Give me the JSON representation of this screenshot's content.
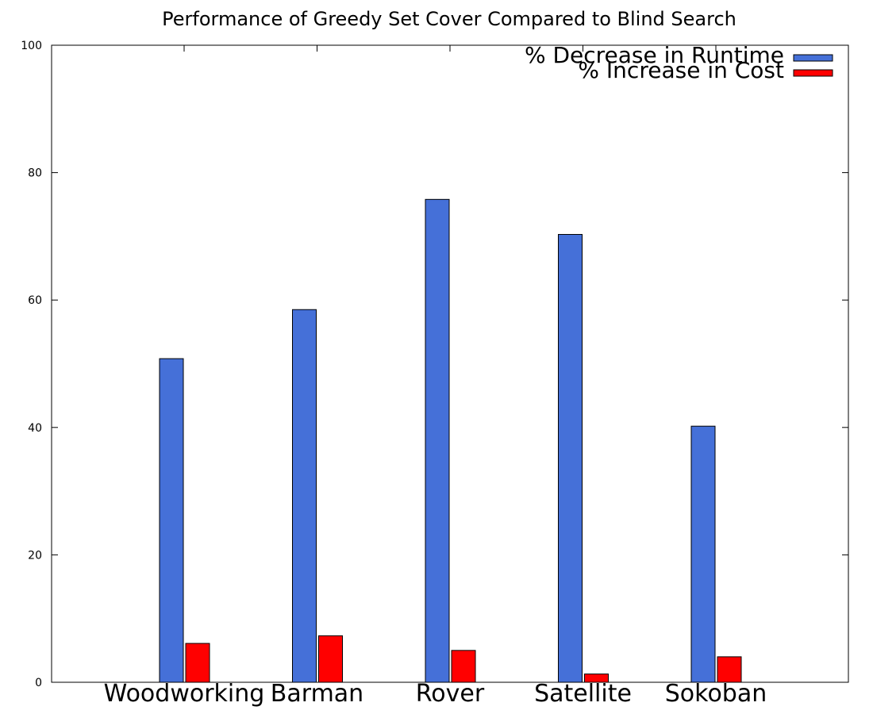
{
  "chart_data": {
    "type": "bar",
    "title": "Performance of Greedy Set Cover Compared to Blind Search",
    "xlabel": "",
    "ylabel": "",
    "categories": [
      "Woodworking",
      "Barman",
      "Rover",
      "Satellite",
      "Sokoban"
    ],
    "series": [
      {
        "name": "% Decrease in Runtime",
        "color": "#4570d8",
        "values": [
          50.8,
          58.5,
          75.8,
          70.3,
          40.2
        ]
      },
      {
        "name": "% Increase in Cost",
        "color": "#ff0000",
        "values": [
          6.1,
          7.3,
          5.0,
          1.3,
          4.0
        ]
      }
    ],
    "ylim": [
      0,
      100
    ],
    "yticks": [
      0,
      20,
      40,
      60,
      80,
      100
    ],
    "grid": false,
    "legend_position": "top-right"
  }
}
